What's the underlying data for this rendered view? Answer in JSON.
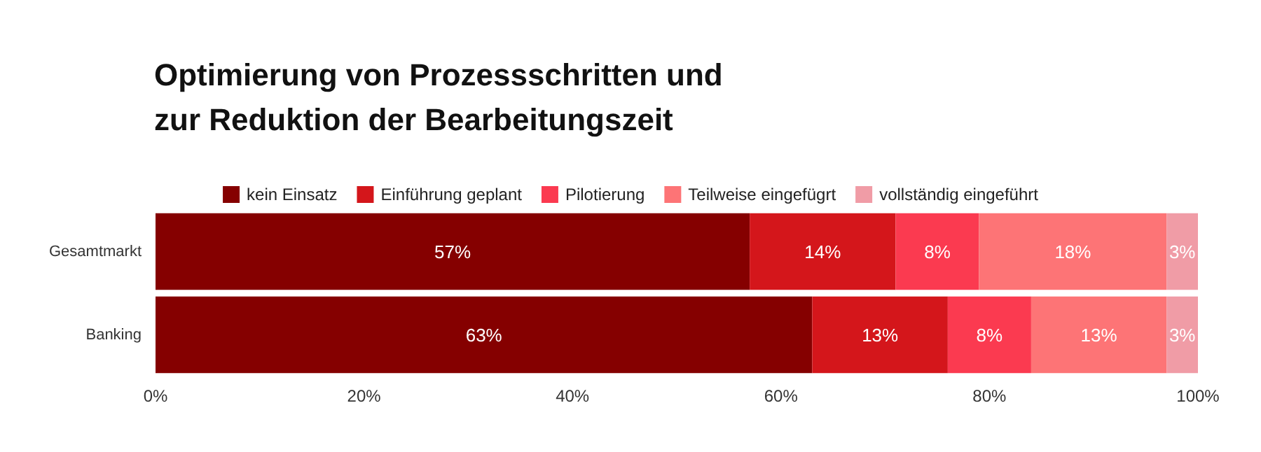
{
  "chart_data": {
    "type": "bar",
    "orientation": "horizontal",
    "stacked": true,
    "title": "Optimierung von Prozessschritten und zur Reduktion der Bearbeitungszeit",
    "categories": [
      "Gesamtmarkt",
      "Banking"
    ],
    "series": [
      {
        "name": "kein Einsatz",
        "color": "#850000",
        "values": [
          57,
          63
        ],
        "value_labels": [
          "57%",
          "63%"
        ]
      },
      {
        "name": "Einführung geplant",
        "color": "#d4161b",
        "values": [
          14,
          13
        ],
        "value_labels": [
          "14%",
          "13%"
        ]
      },
      {
        "name": "Pilotierung",
        "color": "#fb3a50",
        "values": [
          8,
          8
        ],
        "value_labels": [
          "8%",
          "8%"
        ]
      },
      {
        "name": "Teilweise eingefügrt",
        "color": "#fd7476",
        "values": [
          18,
          13
        ],
        "value_labels": [
          "18%",
          "13%"
        ]
      },
      {
        "name": "vollständig eingeführt",
        "color": "#f09ca6",
        "values": [
          3,
          3
        ],
        "value_labels": [
          "3%",
          "3%"
        ]
      }
    ],
    "xlim": [
      0,
      100
    ],
    "xticks": [
      {
        "value": 0,
        "label": "0%"
      },
      {
        "value": 20,
        "label": "20%"
      },
      {
        "value": 40,
        "label": "40%"
      },
      {
        "value": 60,
        "label": "60%"
      },
      {
        "value": 80,
        "label": "80%"
      },
      {
        "value": 100,
        "label": "100%"
      }
    ],
    "grid": false,
    "legend": "top"
  }
}
